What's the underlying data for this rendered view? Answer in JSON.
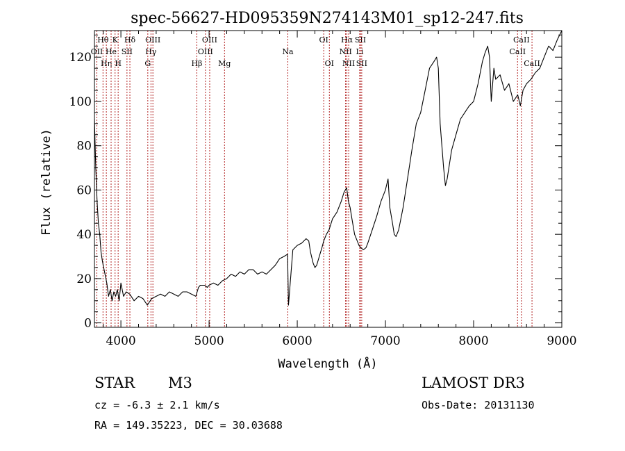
{
  "chart_data": {
    "type": "line",
    "title": "spec-56627-HD095359N274143M01_sp12-247.fits",
    "xlabel": "Wavelength (Å)",
    "ylabel": "Flux (relative)",
    "xlim": [
      3700,
      9000
    ],
    "ylim": [
      -2,
      132
    ],
    "x_ticks": [
      4000,
      5000,
      6000,
      7000,
      8000,
      9000
    ],
    "y_ticks": [
      0,
      20,
      40,
      60,
      80,
      100,
      120
    ],
    "grid": false,
    "line_color": "#000000",
    "marker_color": "#b22222",
    "series": [
      {
        "x": [
          3700,
          3715,
          3730,
          3745,
          3760,
          3775,
          3790,
          3805,
          3820,
          3840,
          3860,
          3880,
          3900,
          3920,
          3940,
          3960,
          3980,
          4000,
          4030,
          4060,
          4100,
          4150,
          4200,
          4250,
          4300,
          4350,
          4400,
          4450,
          4500,
          4550,
          4600,
          4650,
          4700,
          4750,
          4800,
          4850,
          4880,
          4900,
          4950,
          4980,
          5000,
          5050,
          5100,
          5150,
          5200,
          5250,
          5300,
          5350,
          5400,
          5450,
          5500,
          5550,
          5600,
          5650,
          5700,
          5750,
          5800,
          5850,
          5890,
          5900,
          5950,
          6000,
          6050,
          6100,
          6130,
          6150,
          6180,
          6200,
          6220,
          6250,
          6280,
          6300,
          6330,
          6360,
          6400,
          6450,
          6500,
          6530,
          6560,
          6580,
          6600,
          6620,
          6650,
          6680,
          6700,
          6720,
          6750,
          6780,
          6800,
          6850,
          6900,
          6950,
          7000,
          7030,
          7050,
          7080,
          7100,
          7120,
          7150,
          7200,
          7250,
          7300,
          7350,
          7400,
          7450,
          7500,
          7550,
          7580,
          7600,
          7620,
          7640,
          7660,
          7680,
          7700,
          7750,
          7800,
          7850,
          7900,
          7950,
          8000,
          8050,
          8100,
          8130,
          8160,
          8180,
          8200,
          8230,
          8250,
          8300,
          8350,
          8400,
          8450,
          8500,
          8530,
          8560,
          8600,
          8650,
          8700,
          8750,
          8800,
          8850,
          8900,
          8950,
          9000
        ],
        "y": [
          92,
          70,
          55,
          45,
          40,
          32,
          28,
          25,
          22,
          18,
          12,
          15,
          10,
          14,
          12,
          15,
          10,
          18,
          12,
          14,
          13,
          10,
          12,
          11,
          8,
          11,
          12,
          13,
          12,
          14,
          13,
          12,
          14,
          14,
          13,
          12,
          16,
          17,
          17,
          16,
          17,
          18,
          17,
          19,
          20,
          22,
          21,
          23,
          22,
          24,
          24,
          22,
          23,
          22,
          24,
          26,
          29,
          30,
          31,
          8,
          33,
          35,
          36,
          38,
          37,
          32,
          27,
          25,
          26,
          30,
          34,
          37,
          40,
          42,
          47,
          50,
          55,
          59,
          61,
          55,
          52,
          47,
          40,
          37,
          35,
          34,
          33,
          34,
          36,
          42,
          48,
          55,
          60,
          65,
          52,
          45,
          40,
          39,
          42,
          52,
          65,
          78,
          90,
          95,
          105,
          115,
          118,
          120,
          115,
          90,
          80,
          70,
          62,
          65,
          78,
          85,
          92,
          95,
          98,
          100,
          108,
          118,
          122,
          125,
          120,
          100,
          115,
          110,
          112,
          105,
          108,
          100,
          103,
          98,
          105,
          108,
          110,
          113,
          115,
          120,
          125,
          123,
          128,
          132
        ]
      }
    ],
    "line_markers": [
      {
        "label": "Hθ",
        "wl": 3797,
        "row": 0
      },
      {
        "label": "OII",
        "wl": 3727,
        "row": 1
      },
      {
        "label": "Hη",
        "wl": 3835,
        "row": 2
      },
      {
        "label": "K",
        "wl": 3934,
        "row": 0
      },
      {
        "label": "He",
        "wl": 3889,
        "row": 1
      },
      {
        "label": "H",
        "wl": 3969,
        "row": 2
      },
      {
        "label": "Hδ",
        "wl": 4102,
        "row": 0
      },
      {
        "label": "SII",
        "wl": 4069,
        "row": 1
      },
      {
        "label": "OIII",
        "wl": 4363,
        "row": 0
      },
      {
        "label": "Hγ",
        "wl": 4341,
        "row": 1
      },
      {
        "label": "G",
        "wl": 4305,
        "row": 2
      },
      {
        "label": "Hβ",
        "wl": 4861,
        "row": 2
      },
      {
        "label": "OIII",
        "wl": 5007,
        "row": 0
      },
      {
        "label": "OIII",
        "wl": 4959,
        "row": 1
      },
      {
        "label": "Mg",
        "wl": 5175,
        "row": 2
      },
      {
        "label": "Na",
        "wl": 5893,
        "row": 1
      },
      {
        "label": "OI",
        "wl": 6300,
        "row": 0
      },
      {
        "label": "OI",
        "wl": 6364,
        "row": 2
      },
      {
        "label": "Hα",
        "wl": 6563,
        "row": 0
      },
      {
        "label": "NII",
        "wl": 6548,
        "row": 1
      },
      {
        "label": "NII",
        "wl": 6583,
        "row": 2
      },
      {
        "label": "SII",
        "wl": 6716,
        "row": 0
      },
      {
        "label": "Li",
        "wl": 6708,
        "row": 1
      },
      {
        "label": "SII",
        "wl": 6731,
        "row": 2
      },
      {
        "label": "CaII",
        "wl": 8542,
        "row": 0
      },
      {
        "label": "CaII",
        "wl": 8498,
        "row": 1
      },
      {
        "label": "CaII",
        "wl": 8662,
        "row": 2
      }
    ]
  },
  "info": {
    "object_type": "STAR",
    "subclass": "M3",
    "survey": "LAMOST DR3",
    "cz": "cz = -6.3 ± 2.1 km/s",
    "obs_date": "Obs-Date: 20131130",
    "coords": "RA = 149.35223, DEC =  30.03688"
  }
}
